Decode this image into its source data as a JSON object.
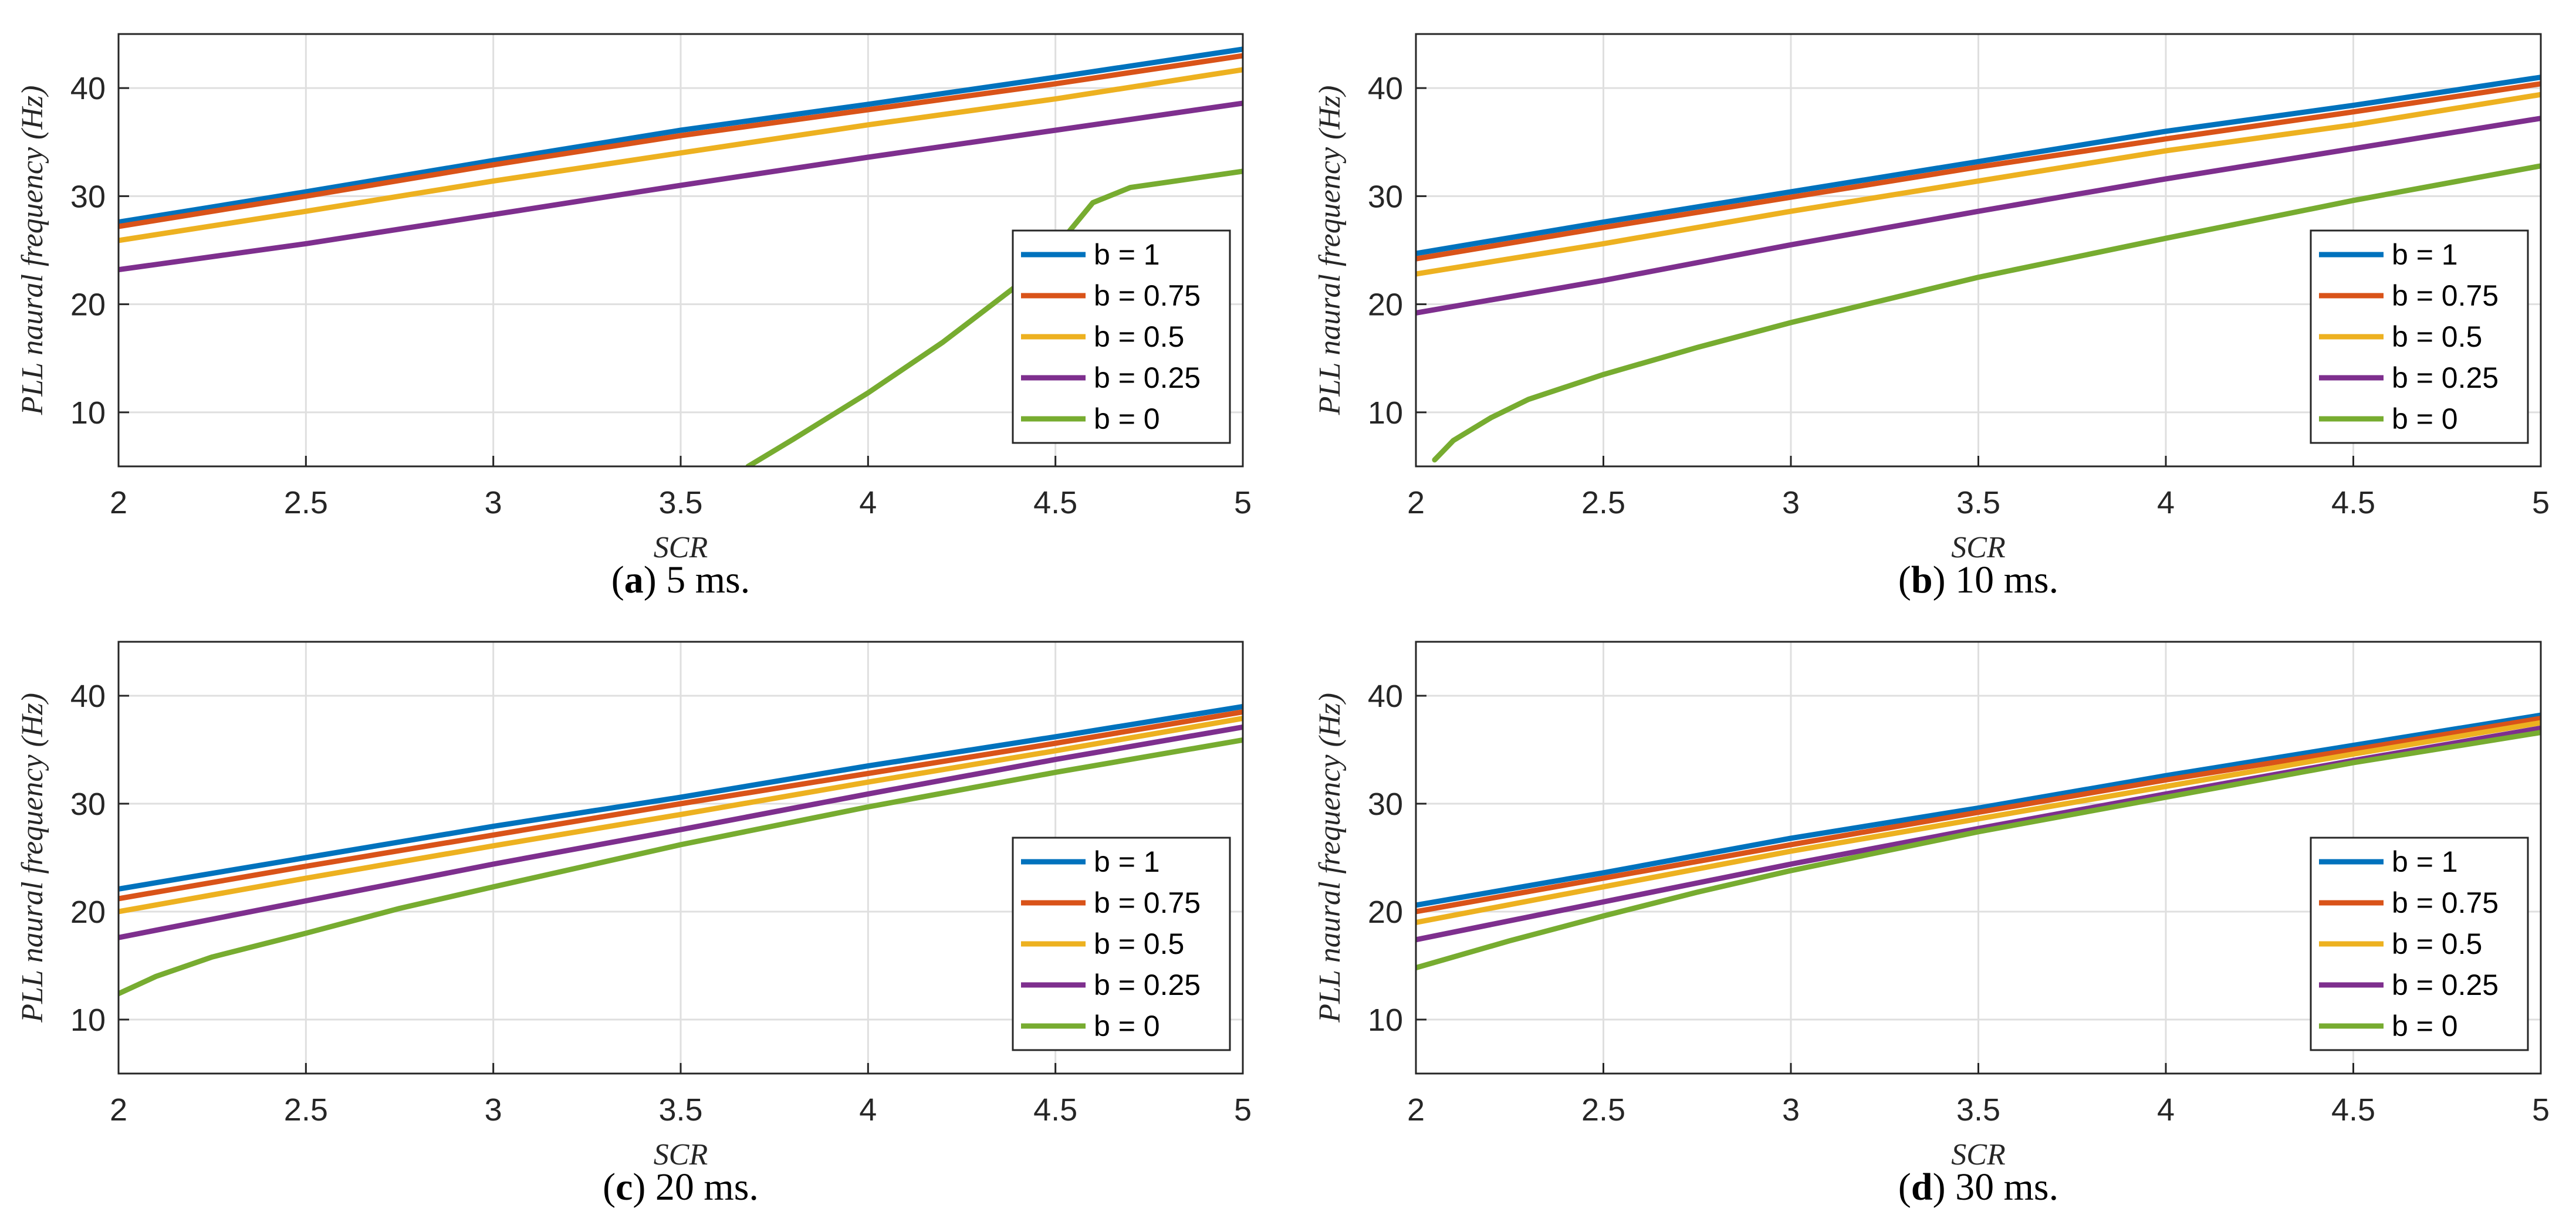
{
  "chart_data": [
    {
      "type": "line",
      "caption": {
        "letter": "a",
        "text": "5 ms."
      },
      "xlabel": "SCR",
      "ylabel": "PLL naural frequency (Hz)",
      "xlim": [
        2,
        5
      ],
      "ylim": [
        5,
        45
      ],
      "xticks": [
        "2",
        "2.5",
        "3",
        "3.5",
        "4",
        "4.5",
        "5"
      ],
      "yticks": [
        "10",
        "20",
        "30",
        "40"
      ],
      "grid": true,
      "legend_position": "lower-right",
      "series": [
        {
          "name": "b = 1",
          "color": "#0072BD",
          "points": [
            [
              2,
              27.6
            ],
            [
              2.5,
              30.4
            ],
            [
              3,
              33.3
            ],
            [
              3.5,
              36.1
            ],
            [
              4,
              38.5
            ],
            [
              4.5,
              41.0
            ],
            [
              5,
              43.6
            ]
          ]
        },
        {
          "name": "b = 0.75",
          "color": "#D95319",
          "points": [
            [
              2,
              27.2
            ],
            [
              2.5,
              30.0
            ],
            [
              3,
              32.9
            ],
            [
              3.5,
              35.6
            ],
            [
              4,
              38.0
            ],
            [
              4.5,
              40.4
            ],
            [
              5,
              43.0
            ]
          ]
        },
        {
          "name": "b = 0.5",
          "color": "#EDB120",
          "points": [
            [
              2,
              25.9
            ],
            [
              2.5,
              28.6
            ],
            [
              3,
              31.4
            ],
            [
              3.5,
              34.0
            ],
            [
              4,
              36.6
            ],
            [
              4.5,
              39.0
            ],
            [
              5,
              41.7
            ]
          ]
        },
        {
          "name": "b = 0.25",
          "color": "#7E2F8E",
          "points": [
            [
              2,
              23.2
            ],
            [
              2.5,
              25.6
            ],
            [
              3,
              28.3
            ],
            [
              3.5,
              31.0
            ],
            [
              4,
              33.6
            ],
            [
              4.5,
              36.1
            ],
            [
              5,
              38.6
            ]
          ]
        },
        {
          "name": "b = 0",
          "color": "#77AC30",
          "points": [
            [
              3.68,
              5.0
            ],
            [
              3.8,
              7.5
            ],
            [
              4.0,
              11.8
            ],
            [
              4.2,
              16.5
            ],
            [
              4.4,
              21.8
            ],
            [
              4.5,
              25.2
            ],
            [
              4.6,
              29.4
            ],
            [
              4.7,
              30.8
            ],
            [
              4.8,
              31.3
            ],
            [
              4.9,
              31.8
            ],
            [
              5,
              32.3
            ]
          ]
        }
      ]
    },
    {
      "type": "line",
      "caption": {
        "letter": "b",
        "text": "10 ms."
      },
      "xlabel": "SCR",
      "ylabel": "PLL naural frequency (Hz)",
      "xlim": [
        2,
        5
      ],
      "ylim": [
        5,
        45
      ],
      "xticks": [
        "2",
        "2.5",
        "3",
        "3.5",
        "4",
        "4.5",
        "5"
      ],
      "yticks": [
        "10",
        "20",
        "30",
        "40"
      ],
      "grid": true,
      "legend_position": "lower-right",
      "series": [
        {
          "name": "b = 1",
          "color": "#0072BD",
          "points": [
            [
              2,
              24.7
            ],
            [
              2.5,
              27.6
            ],
            [
              3,
              30.4
            ],
            [
              3.5,
              33.2
            ],
            [
              4,
              36.0
            ],
            [
              4.5,
              38.4
            ],
            [
              5,
              41.0
            ]
          ]
        },
        {
          "name": "b = 0.75",
          "color": "#D95319",
          "points": [
            [
              2,
              24.2
            ],
            [
              2.5,
              27.1
            ],
            [
              3,
              29.9
            ],
            [
              3.5,
              32.7
            ],
            [
              4,
              35.3
            ],
            [
              4.5,
              37.8
            ],
            [
              5,
              40.4
            ]
          ]
        },
        {
          "name": "b = 0.5",
          "color": "#EDB120",
          "points": [
            [
              2,
              22.8
            ],
            [
              2.5,
              25.6
            ],
            [
              3,
              28.6
            ],
            [
              3.5,
              31.4
            ],
            [
              4,
              34.2
            ],
            [
              4.5,
              36.6
            ],
            [
              5,
              39.4
            ]
          ]
        },
        {
          "name": "b = 0.25",
          "color": "#7E2F8E",
          "points": [
            [
              2,
              19.2
            ],
            [
              2.5,
              22.2
            ],
            [
              3,
              25.5
            ],
            [
              3.5,
              28.6
            ],
            [
              4,
              31.6
            ],
            [
              4.5,
              34.4
            ],
            [
              5,
              37.2
            ]
          ]
        },
        {
          "name": "b = 0",
          "color": "#77AC30",
          "points": [
            [
              2.05,
              5.6
            ],
            [
              2.1,
              7.4
            ],
            [
              2.2,
              9.5
            ],
            [
              2.3,
              11.2
            ],
            [
              2.5,
              13.5
            ],
            [
              2.75,
              16.0
            ],
            [
              3,
              18.3
            ],
            [
              3.5,
              22.5
            ],
            [
              4,
              26.1
            ],
            [
              4.5,
              29.6
            ],
            [
              5,
              32.8
            ]
          ]
        }
      ]
    },
    {
      "type": "line",
      "caption": {
        "letter": "c",
        "text": "20 ms."
      },
      "xlabel": "SCR",
      "ylabel": "PLL naural frequency (Hz)",
      "xlim": [
        2,
        5
      ],
      "ylim": [
        5,
        45
      ],
      "xticks": [
        "2",
        "2.5",
        "3",
        "3.5",
        "4",
        "4.5",
        "5"
      ],
      "yticks": [
        "10",
        "20",
        "30",
        "40"
      ],
      "grid": true,
      "legend_position": "lower-right",
      "series": [
        {
          "name": "b = 1",
          "color": "#0072BD",
          "points": [
            [
              2,
              22.1
            ],
            [
              2.5,
              25.0
            ],
            [
              3,
              27.9
            ],
            [
              3.5,
              30.6
            ],
            [
              4,
              33.5
            ],
            [
              4.5,
              36.2
            ],
            [
              5,
              39.0
            ]
          ]
        },
        {
          "name": "b = 0.75",
          "color": "#D95319",
          "points": [
            [
              2,
              21.2
            ],
            [
              2.5,
              24.2
            ],
            [
              3,
              27.1
            ],
            [
              3.5,
              30.0
            ],
            [
              4,
              32.8
            ],
            [
              4.5,
              35.6
            ],
            [
              5,
              38.5
            ]
          ]
        },
        {
          "name": "b = 0.5",
          "color": "#EDB120",
          "points": [
            [
              2,
              20.0
            ],
            [
              2.5,
              23.1
            ],
            [
              3,
              26.1
            ],
            [
              3.5,
              29.0
            ],
            [
              4,
              32.0
            ],
            [
              4.5,
              34.9
            ],
            [
              5,
              37.9
            ]
          ]
        },
        {
          "name": "b = 0.25",
          "color": "#7E2F8E",
          "points": [
            [
              2,
              17.6
            ],
            [
              2.5,
              21.0
            ],
            [
              3,
              24.4
            ],
            [
              3.5,
              27.6
            ],
            [
              4,
              30.9
            ],
            [
              4.5,
              34.1
            ],
            [
              5,
              37.1
            ]
          ]
        },
        {
          "name": "b = 0",
          "color": "#77AC30",
          "points": [
            [
              2,
              12.4
            ],
            [
              2.1,
              14.0
            ],
            [
              2.25,
              15.8
            ],
            [
              2.5,
              18.0
            ],
            [
              2.75,
              20.3
            ],
            [
              3,
              22.3
            ],
            [
              3.5,
              26.2
            ],
            [
              4,
              29.7
            ],
            [
              4.5,
              32.9
            ],
            [
              5,
              35.9
            ]
          ]
        }
      ]
    },
    {
      "type": "line",
      "caption": {
        "letter": "d",
        "text": "30 ms."
      },
      "xlabel": "SCR",
      "ylabel": "PLL naural frequency (Hz)",
      "xlim": [
        2,
        5
      ],
      "ylim": [
        5,
        45
      ],
      "xticks": [
        "2",
        "2.5",
        "3",
        "3.5",
        "4",
        "4.5",
        "5"
      ],
      "yticks": [
        "10",
        "20",
        "30",
        "40"
      ],
      "grid": true,
      "legend_position": "lower-right",
      "series": [
        {
          "name": "b = 1",
          "color": "#0072BD",
          "points": [
            [
              2,
              20.6
            ],
            [
              2.5,
              23.6
            ],
            [
              3,
              26.8
            ],
            [
              3.5,
              29.6
            ],
            [
              4,
              32.6
            ],
            [
              4.5,
              35.4
            ],
            [
              5,
              38.2
            ]
          ]
        },
        {
          "name": "b = 0.75",
          "color": "#D95319",
          "points": [
            [
              2,
              20.0
            ],
            [
              2.5,
              23.1
            ],
            [
              3,
              26.2
            ],
            [
              3.5,
              29.2
            ],
            [
              4,
              32.2
            ],
            [
              4.5,
              35.0
            ],
            [
              5,
              37.9
            ]
          ]
        },
        {
          "name": "b = 0.5",
          "color": "#EDB120",
          "points": [
            [
              2,
              19.0
            ],
            [
              2.5,
              22.3
            ],
            [
              3,
              25.6
            ],
            [
              3.5,
              28.6
            ],
            [
              4,
              31.6
            ],
            [
              4.5,
              34.6
            ],
            [
              5,
              37.5
            ]
          ]
        },
        {
          "name": "b = 0.25",
          "color": "#7E2F8E",
          "points": [
            [
              2,
              17.4
            ],
            [
              2.5,
              20.9
            ],
            [
              3,
              24.4
            ],
            [
              3.5,
              27.7
            ],
            [
              4,
              30.9
            ],
            [
              4.5,
              34.0
            ],
            [
              5,
              37.0
            ]
          ]
        },
        {
          "name": "b = 0",
          "color": "#77AC30",
          "points": [
            [
              2,
              14.8
            ],
            [
              2.25,
              17.3
            ],
            [
              2.5,
              19.6
            ],
            [
              2.75,
              21.8
            ],
            [
              3,
              23.8
            ],
            [
              3.5,
              27.4
            ],
            [
              4,
              30.6
            ],
            [
              4.5,
              33.8
            ],
            [
              5,
              36.6
            ]
          ]
        }
      ]
    }
  ]
}
